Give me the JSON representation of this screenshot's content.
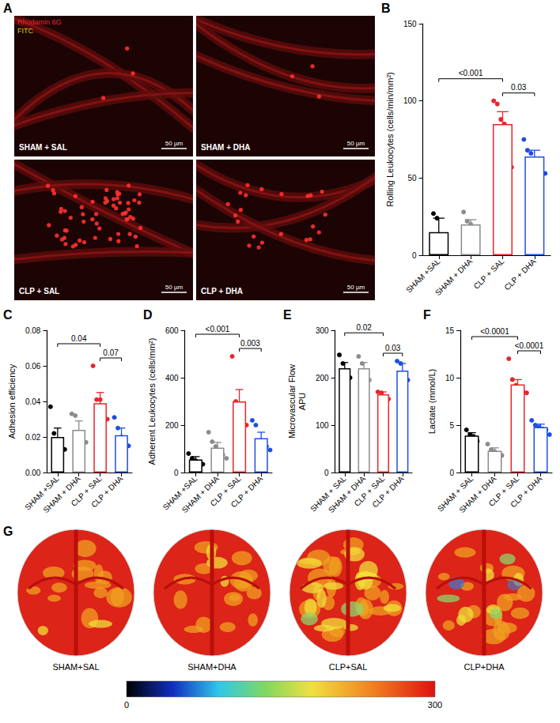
{
  "chart_data": [
    {
      "panel": "B",
      "type": "bar",
      "ylabel": "Rolling Leukocytes (cells/min/mm²)",
      "categories": [
        "SHAM +SAL",
        "SHAM + DHA",
        "CLP + SAL",
        "CLP + DHA"
      ],
      "values": [
        15,
        20,
        85,
        64
      ],
      "errors": [
        9,
        3,
        8,
        4
      ],
      "points": [
        [
          27,
          24,
          5,
          4
        ],
        [
          28,
          22,
          20,
          17,
          13
        ],
        [
          100,
          98,
          88,
          85,
          65,
          57
        ],
        [
          75,
          68,
          66,
          62,
          60,
          55,
          53
        ]
      ],
      "colors": [
        "#000000",
        "#8c8c8c",
        "#e8262b",
        "#1f4fe0"
      ],
      "ylim": [
        0,
        150
      ],
      "yticks": [
        0,
        50,
        100,
        150
      ],
      "annotations": [
        {
          "from": "SHAM +SAL",
          "to": "CLP + SAL",
          "text": "<0.001"
        },
        {
          "from": "CLP + SAL",
          "to": "CLP + DHA",
          "text": "0.03"
        }
      ]
    },
    {
      "panel": "C",
      "type": "bar",
      "ylabel": "Adhesion efficiency",
      "categories": [
        "SHAM +SAL",
        "SHAM + DHA",
        "CLP + SAL",
        "CLP + DHA"
      ],
      "values": [
        0.02,
        0.024,
        0.039,
        0.021
      ],
      "errors": [
        0.005,
        0.005,
        0.006,
        0.004
      ],
      "points": [
        [
          0.037,
          0.022,
          0.015,
          0.012,
          0.013
        ],
        [
          0.033,
          0.032,
          0.02,
          0.015,
          0.017
        ],
        [
          0.06,
          0.041,
          0.041,
          0.031,
          0.03
        ],
        [
          0.031,
          0.025,
          0.02,
          0.017,
          0.015
        ]
      ],
      "colors": [
        "#000000",
        "#8c8c8c",
        "#e8262b",
        "#1f4fe0"
      ],
      "ylim": [
        0,
        0.08
      ],
      "yticks": [
        {
          "value": 0,
          "label": "0.00"
        },
        {
          "value": 0.02,
          "label": "0.02"
        },
        {
          "value": 0.04,
          "label": "0.04"
        },
        {
          "value": 0.06,
          "label": "0.06"
        },
        {
          "value": 0.08,
          "label": "0.08"
        }
      ],
      "annotations": [
        {
          "from": "SHAM +SAL",
          "to": "CLP + SAL",
          "text": "0.04"
        },
        {
          "from": "CLP + SAL",
          "to": "CLP + DHA",
          "text": "0.07"
        }
      ]
    },
    {
      "panel": "D",
      "type": "bar",
      "ylabel": "Adherent Leukocytes (cells/mm²)",
      "categories": [
        "SHAM +SAL",
        "SHAM + DHA",
        "CLP + SAL",
        "CLP + DHA"
      ],
      "values": [
        55,
        105,
        300,
        145
      ],
      "errors": [
        12,
        22,
        50,
        25
      ],
      "points": [
        [
          80,
          60,
          50,
          40,
          35
        ],
        [
          170,
          130,
          110,
          90,
          75,
          60
        ],
        [
          490,
          300,
          280,
          250,
          200
        ],
        [
          220,
          200,
          130,
          120,
          110,
          95
        ]
      ],
      "colors": [
        "#000000",
        "#8c8c8c",
        "#e8262b",
        "#1f4fe0"
      ],
      "ylim": [
        0,
        600
      ],
      "yticks": [
        0,
        200,
        400,
        600
      ],
      "annotations": [
        {
          "from": "SHAM +SAL",
          "to": "CLP + SAL",
          "text": "<0.001"
        },
        {
          "from": "CLP + SAL",
          "to": "CLP + DHA",
          "text": "0.003"
        }
      ]
    },
    {
      "panel": "E",
      "type": "bar",
      "ylabel": "Microvascular Flow\nAPU",
      "categories": [
        "SHAM + SAL",
        "SHAM + DHA",
        "CLP + SAL",
        "CLP + DHA"
      ],
      "values": [
        220,
        220,
        165,
        215
      ],
      "errors": [
        12,
        12,
        5,
        15
      ],
      "points": [
        [
          248,
          230,
          205,
          200
        ],
        [
          245,
          230,
          210,
          195
        ],
        [
          170,
          168,
          160,
          155
        ],
        [
          235,
          230,
          200,
          195
        ]
      ],
      "colors": [
        "#000000",
        "#8c8c8c",
        "#e8262b",
        "#1f4fe0"
      ],
      "ylim": [
        0,
        300
      ],
      "yticks": [
        0,
        100,
        200,
        300
      ],
      "annotations": [
        {
          "from": "SHAM + SAL",
          "to": "CLP + SAL",
          "text": "0.02"
        },
        {
          "from": "CLP + SAL",
          "to": "CLP + DHA",
          "text": "0.03"
        }
      ]
    },
    {
      "panel": "F",
      "type": "bar",
      "ylabel": "Lactate (mmol/L)",
      "categories": [
        "SHAM + SAL",
        "SHAM + DHA",
        "CLP + SAL",
        "CLP + DHA"
      ],
      "values": [
        3.9,
        2.3,
        9.3,
        4.8
      ],
      "errors": [
        0.3,
        0.3,
        0.5,
        0.3
      ],
      "points": [
        [
          4.5,
          4.0,
          3.8,
          3.3
        ],
        [
          3.0,
          2.4,
          2.2,
          1.9,
          1.8
        ],
        [
          12.0,
          9.8,
          9.2,
          8.8,
          8.5,
          8.4
        ],
        [
          5.5,
          5.0,
          4.8,
          4.6,
          4.5,
          4.0
        ]
      ],
      "colors": [
        "#000000",
        "#8c8c8c",
        "#e8262b",
        "#1f4fe0"
      ],
      "ylim": [
        0,
        15
      ],
      "yticks": [
        0,
        5,
        10,
        15
      ],
      "annotations": [
        {
          "from": "SHAM + SAL",
          "to": "CLP + SAL",
          "text": "<0.0001"
        },
        {
          "from": "CLP + SAL",
          "to": "CLP + DHA",
          "text": "<0.0001"
        }
      ]
    }
  ],
  "panel_a": {
    "panel": "A",
    "channels": [
      {
        "text": "Rhodamin 6G",
        "color": "#e8262b"
      },
      {
        "text": "FITC",
        "color": "#d8d800"
      }
    ],
    "images": [
      {
        "label": "SHAM + SAL",
        "scale_bar": "50 µm"
      },
      {
        "label": "SHAM + DHA",
        "scale_bar": "50 µm"
      },
      {
        "label": "CLP + SAL",
        "scale_bar": "50 µm"
      },
      {
        "label": "CLP + DHA",
        "scale_bar": "50 µm"
      }
    ]
  },
  "panel_g": {
    "panel": "G",
    "images": [
      "SHAM+SAL",
      "SHAM+DHA",
      "CLP+SAL",
      "CLP+DHA"
    ],
    "colorbar": {
      "min": 0,
      "max": 300,
      "ticks": [
        0,
        300
      ]
    }
  }
}
